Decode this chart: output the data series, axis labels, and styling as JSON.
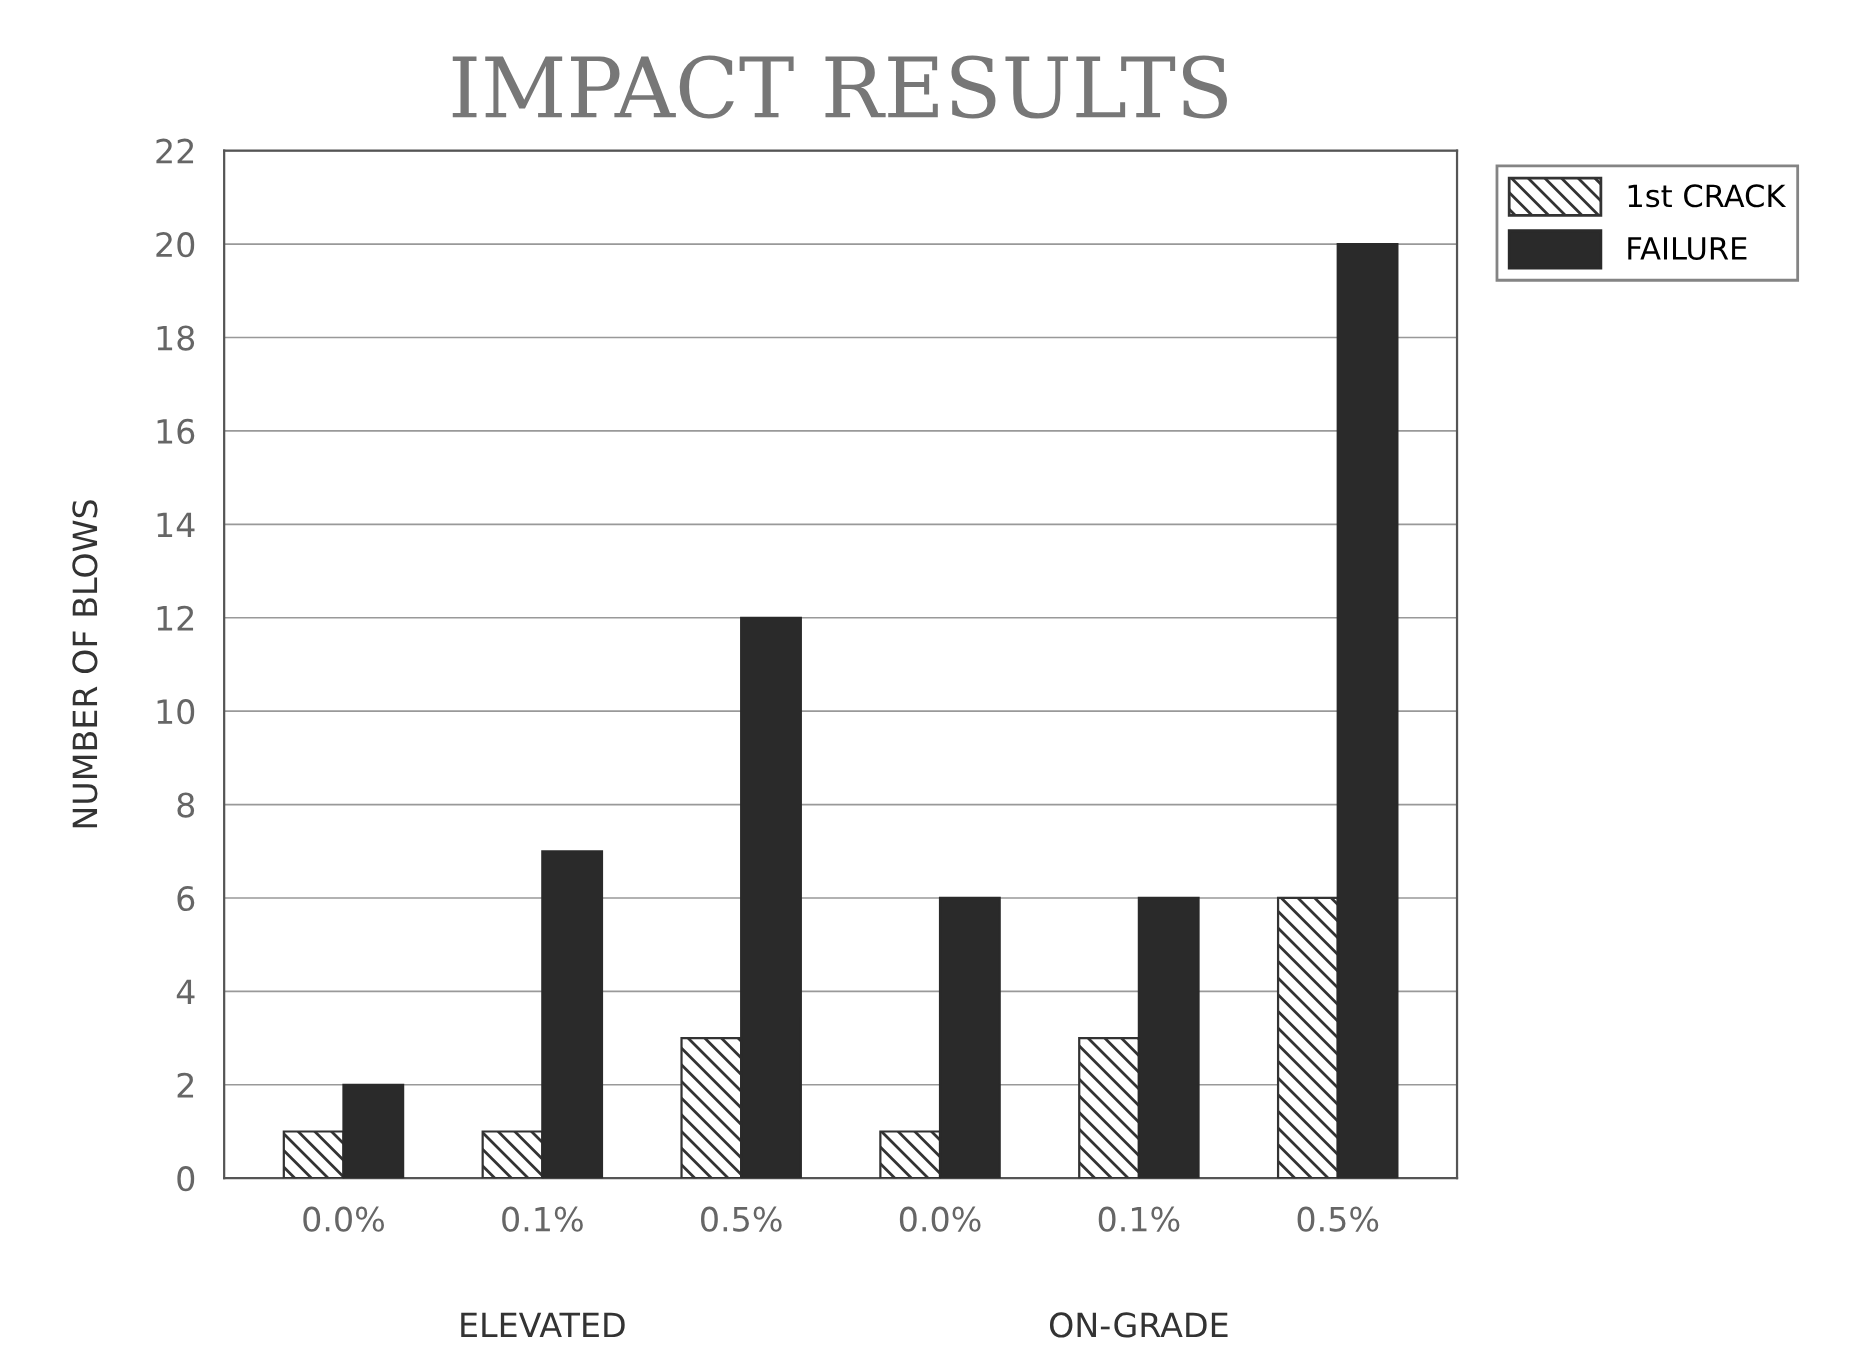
{
  "chart_data": {
    "type": "bar",
    "title": "IMPACT RESULTS",
    "ylabel": "NUMBER OF BLOWS",
    "categories": [
      "0.0%",
      "0.1%",
      "0.5%",
      "0.0%",
      "0.1%",
      "0.5%"
    ],
    "series": [
      {
        "name": "1st CRACK",
        "color": "#333333",
        "values": [
          1,
          1,
          3,
          1,
          3,
          6
        ]
      },
      {
        "name": "FAILURE",
        "color": "#2a2a2a",
        "values": [
          2,
          7,
          12,
          6,
          6,
          20
        ]
      }
    ],
    "ylim": [
      0,
      22
    ],
    "yticks": [
      0,
      2,
      4,
      6,
      8,
      10,
      12,
      14,
      16,
      18,
      20,
      22
    ],
    "grid": "y",
    "legend": "top right",
    "annotations": [
      "ELEVATED",
      "ON-GRADE"
    ]
  }
}
